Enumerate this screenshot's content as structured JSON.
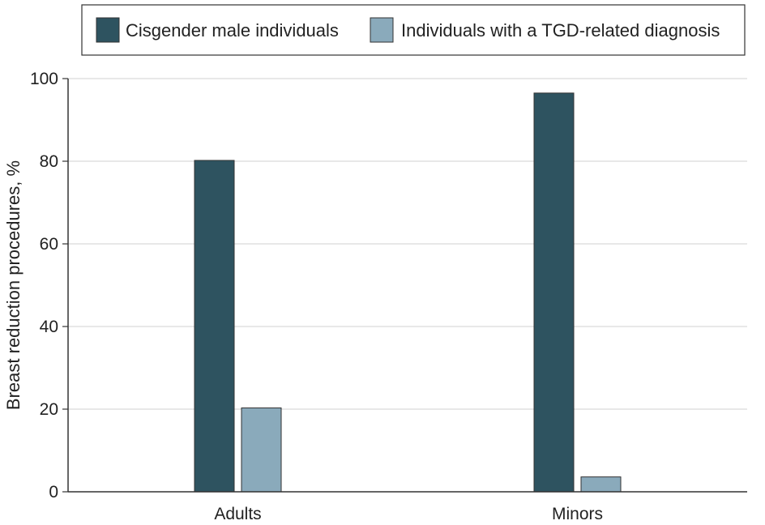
{
  "chart_data": {
    "type": "bar",
    "title": "",
    "xlabel": "",
    "ylabel": "Breast reduction procedures, %",
    "categories": [
      "Adults",
      "Minors"
    ],
    "series": [
      {
        "name": "Cisgender male individuals",
        "values": [
          80.2,
          96.5
        ],
        "color": "#2e5360"
      },
      {
        "name": "Individuals with a TGD-related diagnosis",
        "values": [
          20.3,
          3.6
        ],
        "color": "#8aaabb"
      }
    ],
    "ylim": [
      0,
      100
    ],
    "yticks": [
      0,
      20,
      40,
      60,
      80,
      100
    ],
    "grid": true,
    "legend_position": "top"
  }
}
